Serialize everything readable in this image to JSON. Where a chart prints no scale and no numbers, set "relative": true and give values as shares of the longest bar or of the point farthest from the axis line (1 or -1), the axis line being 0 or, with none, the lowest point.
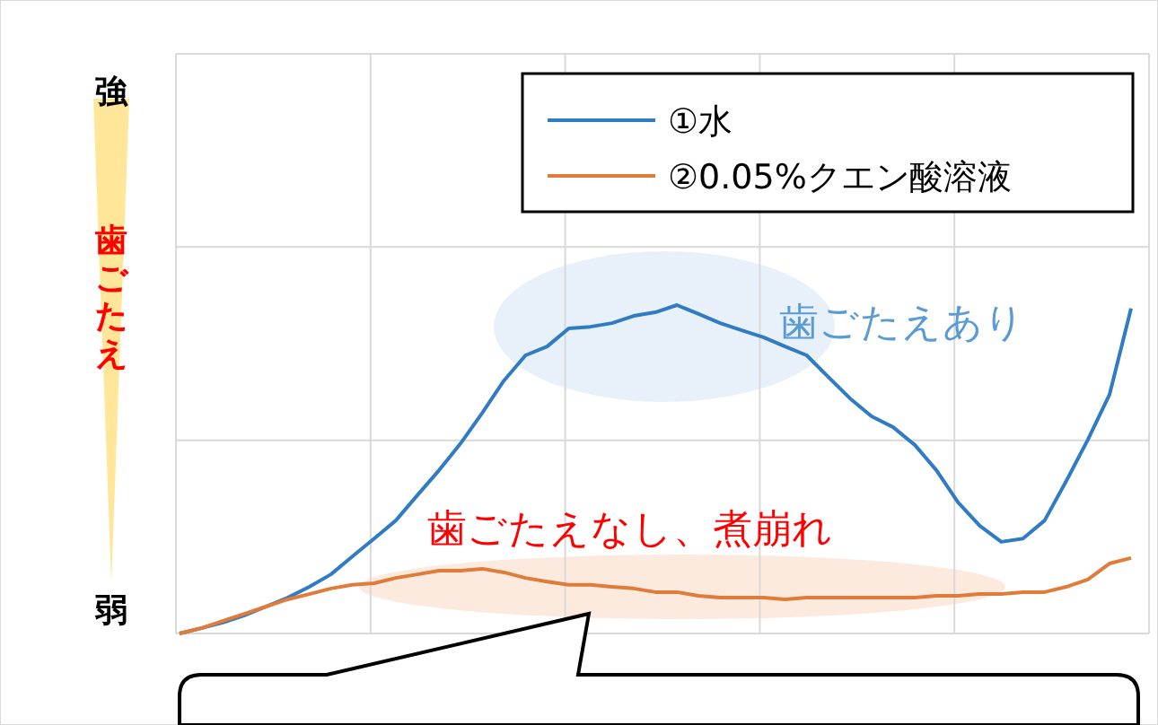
{
  "chart_data": {
    "type": "line",
    "relative": true,
    "ylabel": "歯ごたえ",
    "grid": true,
    "legend": "top right",
    "marker": "none",
    "line_style": "solid",
    "annotations": [
      "強",
      "弱",
      "歯ごたえあり",
      "歯ごたえなし、煮崩れ"
    ],
    "categories": [
      null,
      null,
      null,
      null,
      null,
      null,
      null,
      null,
      null,
      null,
      null,
      null,
      null,
      null,
      null,
      null,
      null,
      null,
      null,
      null,
      null,
      null,
      null,
      null,
      null,
      null,
      null,
      null,
      null,
      null,
      null,
      null,
      null,
      null,
      null,
      null,
      null,
      null,
      null,
      null,
      null,
      null,
      null,
      null,
      null
    ],
    "series": [
      {
        "name": "①水",
        "color": "#2f7bc4",
        "values": [
          0,
          0.016,
          0.033,
          0.055,
          0.082,
          0.109,
          0.142,
          0.18,
          0.235,
          0.289,
          0.344,
          0.421,
          0.497,
          0.579,
          0.672,
          0.77,
          0.847,
          0.874,
          0.929,
          0.934,
          0.945,
          0.967,
          0.978,
          1,
          0.973,
          0.945,
          0.923,
          0.902,
          0.874,
          0.847,
          0.781,
          0.716,
          0.661,
          0.628,
          0.574,
          0.497,
          0.399,
          0.328,
          0.279,
          0.289,
          0.344,
          0.464,
          0.59,
          0.727,
          0.99
        ]
      },
      {
        "name": "②0.05%クエン酸溶液",
        "color": "#e07b39",
        "values": [
          0,
          0.016,
          0.038,
          0.06,
          0.082,
          0.104,
          0.12,
          0.137,
          0.148,
          0.153,
          0.169,
          0.18,
          0.191,
          0.191,
          0.197,
          0.186,
          0.169,
          0.158,
          0.148,
          0.148,
          0.142,
          0.137,
          0.126,
          0.126,
          0.115,
          0.109,
          0.109,
          0.109,
          0.104,
          0.109,
          0.109,
          0.109,
          0.109,
          0.109,
          0.109,
          0.115,
          0.115,
          0.12,
          0.12,
          0.126,
          0.126,
          0.142,
          0.164,
          0.213,
          0.23
        ]
      }
    ]
  }
}
